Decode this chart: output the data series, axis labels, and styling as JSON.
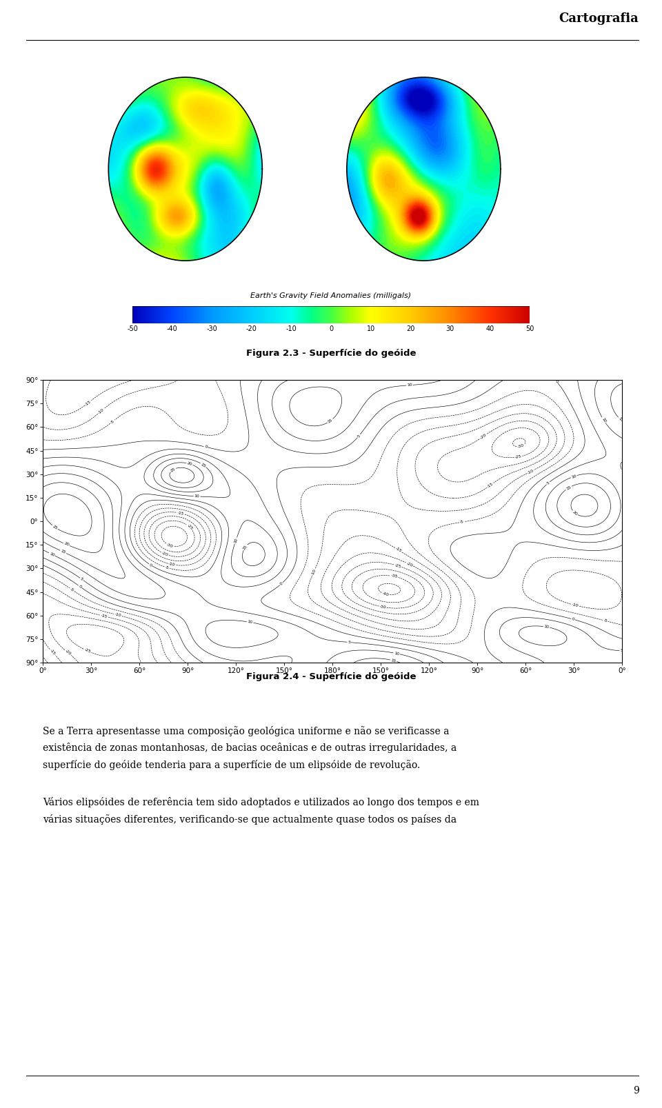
{
  "page_bg": "#ffffff",
  "header_text": "Cartografia",
  "header_fontsize": 13,
  "fig23_caption": "Figura 2.3 - Superfície do geóide",
  "fig24_caption": "Figura 2.4 - Superfície do geóide",
  "colorbar_label": "Earth's Gravity Field Anomalies (milligals)",
  "colorbar_ticks": [
    "-50",
    "-40",
    "-30",
    "-20",
    "-10",
    "0",
    "10",
    "20",
    "30",
    "40",
    "50"
  ],
  "paragraph1_lines": [
    "Se a Terra apresentasse uma composição geológica uniforme e não se verificasse a",
    "existência de zonas montanhosas, de bacias oceânicas e de outras irregularidades, a",
    "superfície do geóide tenderia para a superfície de um elipsóide de revolução."
  ],
  "paragraph2_lines": [
    "Vários elipsóides de referência tem sido adoptados e utilizados ao longo dos tempos e em",
    "várias situações diferentes, verificando-se que actualmente quase todos os países da"
  ],
  "page_number": "9",
  "contour_yticks_vals": [
    90,
    75,
    60,
    45,
    30,
    15,
    0,
    -15,
    -30,
    -45,
    -60,
    -75,
    -90
  ],
  "contour_ytick_labels": [
    "90°",
    "75°",
    "60°",
    "45°",
    "30°",
    "15°",
    "0°",
    "15°",
    "30°",
    "45°",
    "60°",
    "75°",
    "90°"
  ],
  "contour_xtick_vals": [
    0,
    30,
    60,
    90,
    120,
    150,
    180,
    210,
    240,
    270,
    300,
    330,
    360
  ],
  "contour_xtick_labels": [
    "0°",
    "30°",
    "60°",
    "90°",
    "120°",
    "150°",
    "180°",
    "150°",
    "120°",
    "90°",
    "60°",
    "30°",
    "0°"
  ]
}
